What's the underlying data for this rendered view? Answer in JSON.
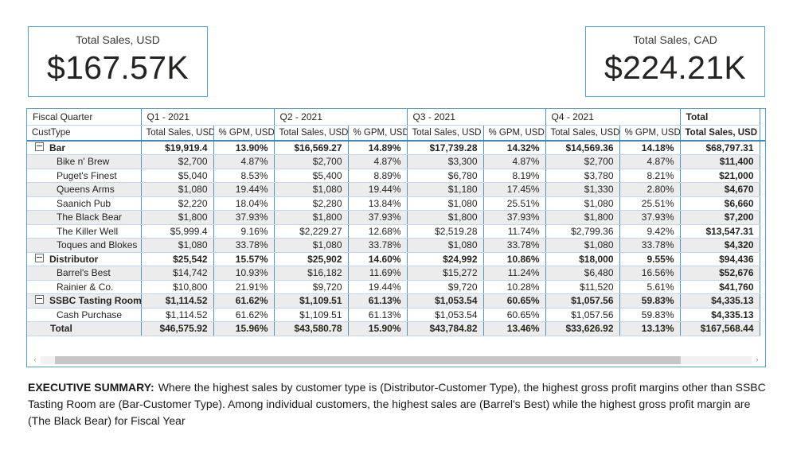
{
  "colors": {
    "accent_border": "#4FA1DA",
    "grid_vertical": "#4E95D1",
    "grid_horizontal": "#BFD7EC",
    "header_underline": "#3E87C4",
    "row_band": "#ECECEC",
    "text": "#252423"
  },
  "cards": [
    {
      "title": "Total Sales, USD",
      "value": "$167.57K"
    },
    {
      "title": "Total Sales, CAD",
      "value": "$224.21K"
    }
  ],
  "matrix": {
    "corner_top": "Fiscal Quarter",
    "corner_bottom": "CustType",
    "column_groups": [
      {
        "label": "Q1 - 2021",
        "bold": false,
        "columns": [
          "Total Sales, USD",
          "% GPM, USD"
        ]
      },
      {
        "label": "Q2 - 2021",
        "bold": false,
        "columns": [
          "Total Sales, USD",
          "% GPM, USD"
        ]
      },
      {
        "label": "Q3 - 2021",
        "bold": false,
        "columns": [
          "Total Sales, USD",
          "% GPM, USD"
        ]
      },
      {
        "label": "Q4 - 2021",
        "bold": false,
        "columns": [
          "Total Sales, USD",
          "% GPM, USD"
        ]
      },
      {
        "label": "Total",
        "bold": true,
        "columns": [
          "Total Sales, USD"
        ]
      }
    ],
    "rows": [
      {
        "label": "Bar",
        "type": "group",
        "cells": [
          "$19,919.4",
          "13.90%",
          "$16,569.27",
          "14.89%",
          "$17,739.28",
          "14.32%",
          "$14,569.36",
          "14.18%",
          "$68,797.31"
        ]
      },
      {
        "label": "Bike n' Brew",
        "type": "item",
        "cells": [
          "$2,700",
          "4.87%",
          "$2,700",
          "4.87%",
          "$3,300",
          "4.87%",
          "$2,700",
          "4.87%",
          "$11,400"
        ]
      },
      {
        "label": "Puget's Finest",
        "type": "item",
        "cells": [
          "$5,040",
          "8.53%",
          "$5,400",
          "8.89%",
          "$6,780",
          "8.19%",
          "$3,780",
          "8.21%",
          "$21,000"
        ]
      },
      {
        "label": "Queens Arms",
        "type": "item",
        "cells": [
          "$1,080",
          "19.44%",
          "$1,080",
          "19.44%",
          "$1,180",
          "17.45%",
          "$1,330",
          "2.80%",
          "$4,670"
        ]
      },
      {
        "label": "Saanich Pub",
        "type": "item",
        "cells": [
          "$2,220",
          "18.04%",
          "$2,280",
          "13.84%",
          "$1,080",
          "25.51%",
          "$1,080",
          "25.51%",
          "$6,660"
        ]
      },
      {
        "label": "The Black Bear",
        "type": "item",
        "cells": [
          "$1,800",
          "37.93%",
          "$1,800",
          "37.93%",
          "$1,800",
          "37.93%",
          "$1,800",
          "37.93%",
          "$7,200"
        ]
      },
      {
        "label": "The Killer Well",
        "type": "item",
        "cells": [
          "$5,999.4",
          "9.16%",
          "$2,229.27",
          "12.68%",
          "$2,519.28",
          "11.74%",
          "$2,799.36",
          "9.42%",
          "$13,547.31"
        ]
      },
      {
        "label": "Toques and Blokes",
        "type": "item",
        "cells": [
          "$1,080",
          "33.78%",
          "$1,080",
          "33.78%",
          "$1,080",
          "33.78%",
          "$1,080",
          "33.78%",
          "$4,320"
        ]
      },
      {
        "label": "Distributor",
        "type": "group",
        "cells": [
          "$25,542",
          "15.57%",
          "$25,902",
          "14.60%",
          "$24,992",
          "10.86%",
          "$18,000",
          "9.55%",
          "$94,436"
        ]
      },
      {
        "label": "Barrel's Best",
        "type": "item",
        "cells": [
          "$14,742",
          "10.93%",
          "$16,182",
          "11.69%",
          "$15,272",
          "11.24%",
          "$6,480",
          "16.56%",
          "$52,676"
        ]
      },
      {
        "label": "Rainier & Co.",
        "type": "item",
        "cells": [
          "$10,800",
          "21.91%",
          "$9,720",
          "19.44%",
          "$9,720",
          "10.28%",
          "$11,520",
          "5.61%",
          "$41,760"
        ]
      },
      {
        "label": "SSBC Tasting Room",
        "type": "group",
        "cells": [
          "$1,114.52",
          "61.62%",
          "$1,109.51",
          "61.13%",
          "$1,053.54",
          "60.65%",
          "$1,057.56",
          "59.83%",
          "$4,335.13"
        ]
      },
      {
        "label": "Cash Purchase",
        "type": "item",
        "cells": [
          "$1,114.52",
          "61.62%",
          "$1,109.51",
          "61.13%",
          "$1,053.54",
          "60.65%",
          "$1,057.56",
          "59.83%",
          "$4,335.13"
        ]
      },
      {
        "label": "Total",
        "type": "total",
        "cells": [
          "$46,575.92",
          "15.96%",
          "$43,580.78",
          "15.90%",
          "$43,784.82",
          "13.46%",
          "$33,626.92",
          "13.13%",
          "$167,568.44"
        ]
      }
    ]
  },
  "scrollbar": {
    "left_icon": "‹",
    "right_icon": "›"
  },
  "summary": {
    "label": "EXECUTIVE SUMMARY:",
    "text": "Where the highest sales by customer type is (Distributor-Customer Type), the highest gross profit margins other than SSBC Tasting Room are (Bar-Customer Type). Among individual customers, the highest sales are (Barrel's Best) while the highest gross profit margin are (The Black Bear) for Fiscal Year"
  }
}
